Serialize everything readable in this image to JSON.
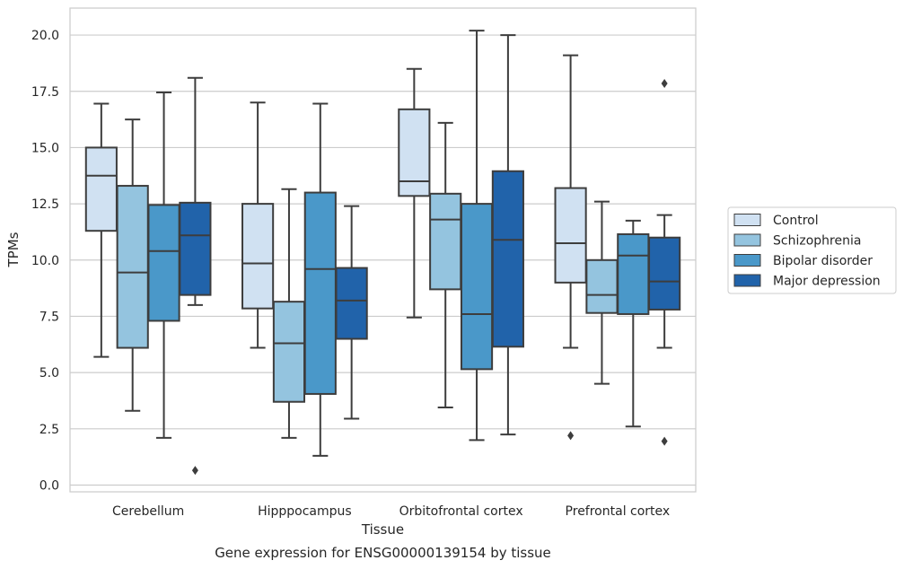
{
  "chart_data": {
    "type": "boxplot",
    "title": "Gene expression for ENSG00000139154 by tissue",
    "xlabel": "Tissue",
    "ylabel": "TPMs",
    "ylim": [
      -0.3,
      21.2
    ],
    "yticks": [
      "0.0",
      "2.5",
      "5.0",
      "7.5",
      "10.0",
      "12.5",
      "15.0",
      "17.5",
      "20.0"
    ],
    "grid": "horizontal",
    "legend_position": "right",
    "categories": [
      "Cerebellum",
      "Hipppocampus",
      "Orbitofrontal cortex",
      "Prefrontal cortex"
    ],
    "series": [
      {
        "name": "Control",
        "color": "#d0e1f2",
        "boxes": [
          {
            "whisker_low": 5.7,
            "q1": 11.3,
            "median": 13.75,
            "q3": 15.0,
            "whisker_high": 16.95,
            "outliers": []
          },
          {
            "whisker_low": 6.1,
            "q1": 7.85,
            "median": 9.85,
            "q3": 12.5,
            "whisker_high": 17.0,
            "outliers": []
          },
          {
            "whisker_low": 7.45,
            "q1": 12.85,
            "median": 13.5,
            "q3": 16.7,
            "whisker_high": 18.5,
            "outliers": []
          },
          {
            "whisker_low": 6.1,
            "q1": 9.0,
            "median": 10.75,
            "q3": 13.2,
            "whisker_high": 19.1,
            "outliers": [
              2.2
            ]
          }
        ]
      },
      {
        "name": "Schizophrenia",
        "color": "#94c4df",
        "boxes": [
          {
            "whisker_low": 3.3,
            "q1": 6.1,
            "median": 9.45,
            "q3": 13.3,
            "whisker_high": 16.25,
            "outliers": []
          },
          {
            "whisker_low": 2.1,
            "q1": 3.7,
            "median": 6.3,
            "q3": 8.15,
            "whisker_high": 13.15,
            "outliers": []
          },
          {
            "whisker_low": 3.45,
            "q1": 8.7,
            "median": 11.8,
            "q3": 12.95,
            "whisker_high": 16.1,
            "outliers": []
          },
          {
            "whisker_low": 4.5,
            "q1": 7.65,
            "median": 8.45,
            "q3": 10.0,
            "whisker_high": 12.6,
            "outliers": []
          }
        ]
      },
      {
        "name": "Bipolar disorder",
        "color": "#4a98c9",
        "boxes": [
          {
            "whisker_low": 2.1,
            "q1": 7.3,
            "median": 10.4,
            "q3": 12.45,
            "whisker_high": 17.45,
            "outliers": []
          },
          {
            "whisker_low": 1.3,
            "q1": 4.05,
            "median": 9.6,
            "q3": 13.0,
            "whisker_high": 16.95,
            "outliers": []
          },
          {
            "whisker_low": 2.0,
            "q1": 5.15,
            "median": 7.6,
            "q3": 12.5,
            "whisker_high": 20.2,
            "outliers": []
          },
          {
            "whisker_low": 2.6,
            "q1": 7.6,
            "median": 10.2,
            "q3": 11.15,
            "whisker_high": 11.75,
            "outliers": []
          }
        ]
      },
      {
        "name": "Major depression",
        "color": "#2163aa",
        "boxes": [
          {
            "whisker_low": 8.0,
            "q1": 8.45,
            "median": 11.1,
            "q3": 12.55,
            "whisker_high": 18.1,
            "outliers": [
              0.65
            ]
          },
          {
            "whisker_low": 2.95,
            "q1": 6.5,
            "median": 8.2,
            "q3": 9.65,
            "whisker_high": 12.4,
            "outliers": []
          },
          {
            "whisker_low": 2.25,
            "q1": 6.15,
            "median": 10.9,
            "q3": 13.95,
            "whisker_high": 20.0,
            "outliers": []
          },
          {
            "whisker_low": 6.1,
            "q1": 7.8,
            "median": 9.05,
            "q3": 11.0,
            "whisker_high": 12.0,
            "outliers": [
              17.85,
              1.95
            ]
          }
        ]
      }
    ]
  }
}
